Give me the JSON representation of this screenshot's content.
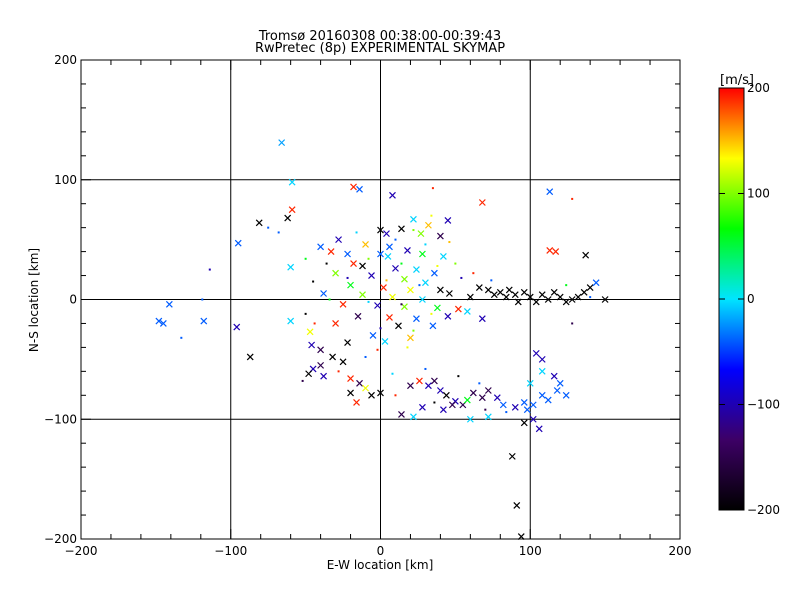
{
  "chart_data": {
    "type": "scatter",
    "title": "Tromsø 20160308 00:38:00-00:39:43",
    "subtitle": "RwPretec (8p) EXPERIMENTAL SKYMAP",
    "xlabel": "E-W location [km]",
    "ylabel": "N-S location [km]",
    "xlim": [
      -200,
      200
    ],
    "ylim": [
      -200,
      200
    ],
    "xticks": [
      -200,
      -100,
      0,
      100,
      200
    ],
    "yticks": [
      -200,
      -100,
      0,
      100,
      200
    ],
    "grid": true,
    "colorbar": {
      "label": "[m/s]",
      "range": [
        -200,
        200
      ],
      "ticks": [
        -200,
        -100,
        0,
        100,
        200
      ],
      "colors": [
        "#000000",
        "#3d0066",
        "#0000ff",
        "#00e5ff",
        "#00ff00",
        "#ffff00",
        "#ff0000"
      ]
    },
    "points": [
      {
        "x": -66,
        "y": 131,
        "v": -20,
        "m": "x"
      },
      {
        "x": -59,
        "y": 98,
        "v": -5,
        "m": "x"
      },
      {
        "x": -59,
        "y": 75,
        "v": 190,
        "m": "x"
      },
      {
        "x": -62,
        "y": 68,
        "v": -200,
        "m": "x"
      },
      {
        "x": -81,
        "y": 64,
        "v": -200,
        "m": "x"
      },
      {
        "x": -95,
        "y": 47,
        "v": -40,
        "m": "x"
      },
      {
        "x": -114,
        "y": 25,
        "v": -100,
        "m": "d"
      },
      {
        "x": -60,
        "y": 27,
        "v": -5,
        "m": "x"
      },
      {
        "x": -145,
        "y": -20,
        "v": -40,
        "m": "x"
      },
      {
        "x": -148,
        "y": -18,
        "v": -40,
        "m": "x"
      },
      {
        "x": -141,
        "y": -4,
        "v": -40,
        "m": "x"
      },
      {
        "x": -118,
        "y": -18,
        "v": -40,
        "m": "x"
      },
      {
        "x": -119,
        "y": 0,
        "v": -40,
        "m": "d"
      },
      {
        "x": -133,
        "y": -32,
        "v": -40,
        "m": "d"
      },
      {
        "x": -96,
        "y": -23,
        "v": -100,
        "m": "x"
      },
      {
        "x": -87,
        "y": -48,
        "v": -200,
        "m": "x"
      },
      {
        "x": -60,
        "y": -18,
        "v": -5,
        "m": "x"
      },
      {
        "x": -47,
        "y": -27,
        "v": 130,
        "m": "x"
      },
      {
        "x": -18,
        "y": 94,
        "v": 190,
        "m": "x"
      },
      {
        "x": -14,
        "y": 92,
        "v": -40,
        "m": "x"
      },
      {
        "x": 8,
        "y": 87,
        "v": -100,
        "m": "x"
      },
      {
        "x": 35,
        "y": 93,
        "v": 190,
        "m": "d"
      },
      {
        "x": 68,
        "y": 81,
        "v": 190,
        "m": "x"
      },
      {
        "x": 113,
        "y": 90,
        "v": -40,
        "m": "x"
      },
      {
        "x": 128,
        "y": 84,
        "v": 190,
        "m": "d"
      },
      {
        "x": 113,
        "y": 41,
        "v": 190,
        "m": "x"
      },
      {
        "x": 117,
        "y": 40,
        "v": 190,
        "m": "x"
      },
      {
        "x": 137,
        "y": 37,
        "v": -200,
        "m": "x"
      },
      {
        "x": 22,
        "y": 67,
        "v": -5,
        "m": "x"
      },
      {
        "x": 45,
        "y": 66,
        "v": -100,
        "m": "x"
      },
      {
        "x": 32,
        "y": 62,
        "v": 150,
        "m": "x"
      },
      {
        "x": 14,
        "y": 59,
        "v": -200,
        "m": "x"
      },
      {
        "x": 0,
        "y": 58,
        "v": -200,
        "m": "x"
      },
      {
        "x": 4,
        "y": 55,
        "v": -100,
        "m": "x"
      },
      {
        "x": 27,
        "y": 55,
        "v": 100,
        "m": "x"
      },
      {
        "x": 40,
        "y": 53,
        "v": -150,
        "m": "x"
      },
      {
        "x": -28,
        "y": 50,
        "v": -100,
        "m": "x"
      },
      {
        "x": -10,
        "y": 46,
        "v": 150,
        "m": "x"
      },
      {
        "x": 6,
        "y": 44,
        "v": -40,
        "m": "x"
      },
      {
        "x": 18,
        "y": 41,
        "v": -100,
        "m": "x"
      },
      {
        "x": -40,
        "y": 44,
        "v": -40,
        "m": "x"
      },
      {
        "x": -33,
        "y": 40,
        "v": 190,
        "m": "x"
      },
      {
        "x": -22,
        "y": 38,
        "v": -40,
        "m": "x"
      },
      {
        "x": 0,
        "y": 38,
        "v": -40,
        "m": "x"
      },
      {
        "x": 5,
        "y": 36,
        "v": -5,
        "m": "x"
      },
      {
        "x": 28,
        "y": 38,
        "v": 60,
        "m": "x"
      },
      {
        "x": 42,
        "y": 36,
        "v": -5,
        "m": "x"
      },
      {
        "x": -50,
        "y": 34,
        "v": 60,
        "m": "d"
      },
      {
        "x": -18,
        "y": 30,
        "v": 190,
        "m": "x"
      },
      {
        "x": -12,
        "y": 28,
        "v": -200,
        "m": "x"
      },
      {
        "x": 10,
        "y": 26,
        "v": -100,
        "m": "x"
      },
      {
        "x": 24,
        "y": 25,
        "v": -5,
        "m": "x"
      },
      {
        "x": 36,
        "y": 22,
        "v": -40,
        "m": "x"
      },
      {
        "x": -30,
        "y": 22,
        "v": 100,
        "m": "x"
      },
      {
        "x": -6,
        "y": 20,
        "v": -100,
        "m": "x"
      },
      {
        "x": 16,
        "y": 17,
        "v": 100,
        "m": "x"
      },
      {
        "x": 30,
        "y": 14,
        "v": -5,
        "m": "x"
      },
      {
        "x": -45,
        "y": 15,
        "v": -200,
        "m": "d"
      },
      {
        "x": -20,
        "y": 12,
        "v": 60,
        "m": "x"
      },
      {
        "x": 2,
        "y": 10,
        "v": 190,
        "m": "x"
      },
      {
        "x": 20,
        "y": 8,
        "v": 130,
        "m": "x"
      },
      {
        "x": 40,
        "y": 8,
        "v": -200,
        "m": "x"
      },
      {
        "x": 46,
        "y": 5,
        "v": -200,
        "m": "x"
      },
      {
        "x": -38,
        "y": 5,
        "v": -40,
        "m": "x"
      },
      {
        "x": -12,
        "y": 4,
        "v": 100,
        "m": "x"
      },
      {
        "x": 8,
        "y": 2,
        "v": 130,
        "m": "x"
      },
      {
        "x": 28,
        "y": 0,
        "v": -5,
        "m": "x"
      },
      {
        "x": -25,
        "y": -4,
        "v": 190,
        "m": "x"
      },
      {
        "x": -2,
        "y": -5,
        "v": -100,
        "m": "x"
      },
      {
        "x": 16,
        "y": -6,
        "v": 100,
        "m": "x"
      },
      {
        "x": 38,
        "y": -7,
        "v": 60,
        "m": "x"
      },
      {
        "x": 52,
        "y": -8,
        "v": 190,
        "m": "x"
      },
      {
        "x": 58,
        "y": -10,
        "v": -5,
        "m": "x"
      },
      {
        "x": -15,
        "y": -14,
        "v": -150,
        "m": "x"
      },
      {
        "x": 6,
        "y": -15,
        "v": 190,
        "m": "x"
      },
      {
        "x": 24,
        "y": -16,
        "v": -40,
        "m": "x"
      },
      {
        "x": 45,
        "y": -14,
        "v": -100,
        "m": "x"
      },
      {
        "x": -30,
        "y": -20,
        "v": 190,
        "m": "x"
      },
      {
        "x": 12,
        "y": -22,
        "v": -200,
        "m": "x"
      },
      {
        "x": 35,
        "y": -22,
        "v": -40,
        "m": "x"
      },
      {
        "x": 68,
        "y": -16,
        "v": -100,
        "m": "x"
      },
      {
        "x": -5,
        "y": -30,
        "v": -40,
        "m": "x"
      },
      {
        "x": 20,
        "y": -32,
        "v": 150,
        "m": "x"
      },
      {
        "x": 3,
        "y": -35,
        "v": -5,
        "m": "x"
      },
      {
        "x": -22,
        "y": -36,
        "v": -200,
        "m": "x"
      },
      {
        "x": -46,
        "y": -38,
        "v": -100,
        "m": "x"
      },
      {
        "x": -40,
        "y": -42,
        "v": -150,
        "m": "x"
      },
      {
        "x": -32,
        "y": -48,
        "v": -200,
        "m": "x"
      },
      {
        "x": -25,
        "y": -52,
        "v": -200,
        "m": "x"
      },
      {
        "x": -40,
        "y": -55,
        "v": -150,
        "m": "x"
      },
      {
        "x": -45,
        "y": -58,
        "v": -100,
        "m": "x"
      },
      {
        "x": -48,
        "y": -62,
        "v": -200,
        "m": "x"
      },
      {
        "x": -38,
        "y": -64,
        "v": -100,
        "m": "x"
      },
      {
        "x": -20,
        "y": -66,
        "v": 190,
        "m": "x"
      },
      {
        "x": -14,
        "y": -70,
        "v": -150,
        "m": "x"
      },
      {
        "x": -10,
        "y": -74,
        "v": 130,
        "m": "x"
      },
      {
        "x": 0,
        "y": -78,
        "v": -200,
        "m": "x"
      },
      {
        "x": -6,
        "y": -80,
        "v": -200,
        "m": "x"
      },
      {
        "x": -20,
        "y": -78,
        "v": -200,
        "m": "x"
      },
      {
        "x": 20,
        "y": -72,
        "v": -150,
        "m": "x"
      },
      {
        "x": 26,
        "y": -68,
        "v": 190,
        "m": "x"
      },
      {
        "x": 32,
        "y": -72,
        "v": -100,
        "m": "x"
      },
      {
        "x": 36,
        "y": -68,
        "v": -150,
        "m": "x"
      },
      {
        "x": 40,
        "y": -76,
        "v": -100,
        "m": "x"
      },
      {
        "x": 44,
        "y": -80,
        "v": -200,
        "m": "x"
      },
      {
        "x": 50,
        "y": -85,
        "v": -100,
        "m": "x"
      },
      {
        "x": 55,
        "y": -88,
        "v": -150,
        "m": "x"
      },
      {
        "x": 58,
        "y": -84,
        "v": 60,
        "m": "x"
      },
      {
        "x": 62,
        "y": -78,
        "v": -150,
        "m": "x"
      },
      {
        "x": 68,
        "y": -82,
        "v": -150,
        "m": "x"
      },
      {
        "x": 72,
        "y": -76,
        "v": -150,
        "m": "x"
      },
      {
        "x": 78,
        "y": -82,
        "v": -100,
        "m": "x"
      },
      {
        "x": 82,
        "y": -88,
        "v": -40,
        "m": "x"
      },
      {
        "x": 90,
        "y": -90,
        "v": -100,
        "m": "x"
      },
      {
        "x": 96,
        "y": -86,
        "v": -40,
        "m": "x"
      },
      {
        "x": 98,
        "y": -92,
        "v": -40,
        "m": "x"
      },
      {
        "x": 102,
        "y": -88,
        "v": -40,
        "m": "x"
      },
      {
        "x": 108,
        "y": -80,
        "v": -40,
        "m": "x"
      },
      {
        "x": 112,
        "y": -84,
        "v": -40,
        "m": "x"
      },
      {
        "x": 118,
        "y": -76,
        "v": -40,
        "m": "x"
      },
      {
        "x": 120,
        "y": -70,
        "v": -40,
        "m": "x"
      },
      {
        "x": 116,
        "y": -64,
        "v": -100,
        "m": "x"
      },
      {
        "x": 124,
        "y": -80,
        "v": -40,
        "m": "x"
      },
      {
        "x": 100,
        "y": -70,
        "v": -5,
        "m": "x"
      },
      {
        "x": 108,
        "y": -60,
        "v": -5,
        "m": "x"
      },
      {
        "x": 104,
        "y": -45,
        "v": -100,
        "m": "x"
      },
      {
        "x": 108,
        "y": -50,
        "v": -100,
        "m": "x"
      },
      {
        "x": 102,
        "y": -100,
        "v": -100,
        "m": "x"
      },
      {
        "x": 106,
        "y": -108,
        "v": -100,
        "m": "x"
      },
      {
        "x": 96,
        "y": -103,
        "v": -200,
        "m": "x"
      },
      {
        "x": 88,
        "y": -131,
        "v": -200,
        "m": "x"
      },
      {
        "x": 91,
        "y": -172,
        "v": -200,
        "m": "x"
      },
      {
        "x": 94,
        "y": -198,
        "v": -200,
        "m": "x"
      },
      {
        "x": 22,
        "y": -98,
        "v": -5,
        "m": "x"
      },
      {
        "x": 28,
        "y": -90,
        "v": -100,
        "m": "x"
      },
      {
        "x": 14,
        "y": -96,
        "v": -150,
        "m": "x"
      },
      {
        "x": 42,
        "y": -92,
        "v": -100,
        "m": "x"
      },
      {
        "x": 48,
        "y": -88,
        "v": -150,
        "m": "x"
      },
      {
        "x": 60,
        "y": -100,
        "v": -5,
        "m": "x"
      },
      {
        "x": 72,
        "y": -98,
        "v": -5,
        "m": "x"
      },
      {
        "x": -16,
        "y": -86,
        "v": 190,
        "m": "x"
      },
      {
        "x": 60,
        "y": 2,
        "v": -200,
        "m": "x"
      },
      {
        "x": 66,
        "y": 10,
        "v": -200,
        "m": "x"
      },
      {
        "x": 72,
        "y": 8,
        "v": -200,
        "m": "x"
      },
      {
        "x": 76,
        "y": 4,
        "v": -200,
        "m": "x"
      },
      {
        "x": 80,
        "y": 6,
        "v": -200,
        "m": "x"
      },
      {
        "x": 84,
        "y": 2,
        "v": -200,
        "m": "x"
      },
      {
        "x": 86,
        "y": 8,
        "v": -200,
        "m": "x"
      },
      {
        "x": 90,
        "y": 4,
        "v": -200,
        "m": "x"
      },
      {
        "x": 92,
        "y": -2,
        "v": -200,
        "m": "x"
      },
      {
        "x": 96,
        "y": 6,
        "v": -200,
        "m": "x"
      },
      {
        "x": 100,
        "y": 2,
        "v": -200,
        "m": "x"
      },
      {
        "x": 104,
        "y": -2,
        "v": -200,
        "m": "x"
      },
      {
        "x": 108,
        "y": 4,
        "v": -200,
        "m": "x"
      },
      {
        "x": 112,
        "y": 0,
        "v": -200,
        "m": "x"
      },
      {
        "x": 116,
        "y": 6,
        "v": -200,
        "m": "x"
      },
      {
        "x": 120,
        "y": 2,
        "v": -200,
        "m": "x"
      },
      {
        "x": 124,
        "y": -2,
        "v": -200,
        "m": "x"
      },
      {
        "x": 128,
        "y": 0,
        "v": -200,
        "m": "x"
      },
      {
        "x": 132,
        "y": 2,
        "v": -200,
        "m": "x"
      },
      {
        "x": 136,
        "y": 6,
        "v": -200,
        "m": "x"
      },
      {
        "x": 140,
        "y": 10,
        "v": -200,
        "m": "x"
      },
      {
        "x": 150,
        "y": 0,
        "v": -200,
        "m": "x"
      },
      {
        "x": 144,
        "y": 14,
        "v": -40,
        "m": "x"
      },
      {
        "x": 128,
        "y": -20,
        "v": -150,
        "m": "d"
      },
      {
        "x": -68,
        "y": 56,
        "v": -40,
        "m": "d"
      },
      {
        "x": -75,
        "y": 60,
        "v": -40,
        "m": "d"
      },
      {
        "x": 34,
        "y": 70,
        "v": 130,
        "m": "d"
      },
      {
        "x": 22,
        "y": 58,
        "v": 100,
        "m": "d"
      },
      {
        "x": 10,
        "y": 50,
        "v": -40,
        "m": "d"
      },
      {
        "x": 30,
        "y": 46,
        "v": -5,
        "m": "d"
      },
      {
        "x": -8,
        "y": 34,
        "v": 100,
        "m": "d"
      },
      {
        "x": 14,
        "y": 30,
        "v": 60,
        "m": "d"
      },
      {
        "x": 38,
        "y": 28,
        "v": 130,
        "m": "d"
      },
      {
        "x": -22,
        "y": 18,
        "v": -100,
        "m": "d"
      },
      {
        "x": 4,
        "y": 16,
        "v": 150,
        "m": "d"
      },
      {
        "x": 26,
        "y": 12,
        "v": -40,
        "m": "d"
      },
      {
        "x": -34,
        "y": 0,
        "v": 60,
        "m": "d"
      },
      {
        "x": -8,
        "y": -2,
        "v": -5,
        "m": "d"
      },
      {
        "x": 14,
        "y": -4,
        "v": -150,
        "m": "d"
      },
      {
        "x": 34,
        "y": -12,
        "v": 130,
        "m": "d"
      },
      {
        "x": -50,
        "y": -12,
        "v": -200,
        "m": "d"
      },
      {
        "x": -44,
        "y": -20,
        "v": 190,
        "m": "d"
      },
      {
        "x": 0,
        "y": -24,
        "v": -100,
        "m": "d"
      },
      {
        "x": 22,
        "y": -26,
        "v": 100,
        "m": "d"
      },
      {
        "x": -10,
        "y": -48,
        "v": -40,
        "m": "d"
      },
      {
        "x": -28,
        "y": -60,
        "v": 190,
        "m": "d"
      },
      {
        "x": -52,
        "y": -68,
        "v": -150,
        "m": "d"
      },
      {
        "x": 8,
        "y": -62,
        "v": -5,
        "m": "d"
      },
      {
        "x": 30,
        "y": -58,
        "v": -40,
        "m": "d"
      },
      {
        "x": 52,
        "y": -64,
        "v": -200,
        "m": "d"
      },
      {
        "x": 66,
        "y": -70,
        "v": -40,
        "m": "d"
      },
      {
        "x": 10,
        "y": -80,
        "v": 190,
        "m": "d"
      },
      {
        "x": 36,
        "y": -86,
        "v": -200,
        "m": "d"
      },
      {
        "x": 70,
        "y": -92,
        "v": -150,
        "m": "d"
      },
      {
        "x": 84,
        "y": -94,
        "v": -40,
        "m": "d"
      },
      {
        "x": 54,
        "y": 18,
        "v": -100,
        "m": "d"
      },
      {
        "x": 62,
        "y": 22,
        "v": 190,
        "m": "d"
      },
      {
        "x": 74,
        "y": 16,
        "v": -40,
        "m": "d"
      },
      {
        "x": 124,
        "y": 12,
        "v": 60,
        "m": "d"
      },
      {
        "x": 140,
        "y": 2,
        "v": -40,
        "m": "d"
      },
      {
        "x": -36,
        "y": 30,
        "v": -200,
        "m": "d"
      },
      {
        "x": -16,
        "y": 56,
        "v": -5,
        "m": "d"
      },
      {
        "x": 46,
        "y": 48,
        "v": 150,
        "m": "d"
      },
      {
        "x": 50,
        "y": 30,
        "v": 100,
        "m": "d"
      },
      {
        "x": 18,
        "y": -40,
        "v": 130,
        "m": "d"
      },
      {
        "x": -2,
        "y": -42,
        "v": 190,
        "m": "d"
      }
    ]
  }
}
